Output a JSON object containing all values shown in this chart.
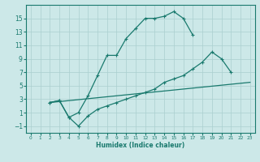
{
  "bg_color": "#cce8e8",
  "line_color": "#1a7a6e",
  "grid_color": "#aacfcf",
  "xlabel": "Humidex (Indice chaleur)",
  "xlim": [
    -0.5,
    23.5
  ],
  "ylim": [
    -2,
    17
  ],
  "xticks": [
    0,
    1,
    2,
    3,
    4,
    5,
    6,
    7,
    8,
    9,
    10,
    11,
    12,
    13,
    14,
    15,
    16,
    17,
    18,
    19,
    20,
    21,
    22,
    23
  ],
  "yticks": [
    -1,
    1,
    3,
    5,
    7,
    9,
    11,
    13,
    15
  ],
  "curve1_x": [
    2,
    3,
    4,
    5,
    6,
    7,
    8,
    9,
    10,
    11,
    12,
    13,
    14,
    15,
    16,
    17
  ],
  "curve1_y": [
    2.5,
    2.8,
    0.3,
    1.0,
    3.5,
    6.5,
    9.5,
    9.5,
    12.0,
    13.5,
    15.0,
    15.0,
    15.3,
    16.0,
    15.0,
    12.5
  ],
  "curve2_x": [
    2,
    3,
    4,
    5,
    6,
    7,
    8,
    9,
    10,
    11,
    12,
    13,
    14,
    15,
    16,
    17,
    18,
    19,
    20,
    21
  ],
  "curve2_y": [
    2.5,
    2.8,
    0.3,
    -1.0,
    0.5,
    1.5,
    2.0,
    2.5,
    3.0,
    3.5,
    4.0,
    4.5,
    5.5,
    6.0,
    6.5,
    7.5,
    8.5,
    10.0,
    9.0,
    7.0
  ],
  "curve3_x": [
    2,
    23
  ],
  "curve3_y": [
    2.5,
    5.5
  ]
}
